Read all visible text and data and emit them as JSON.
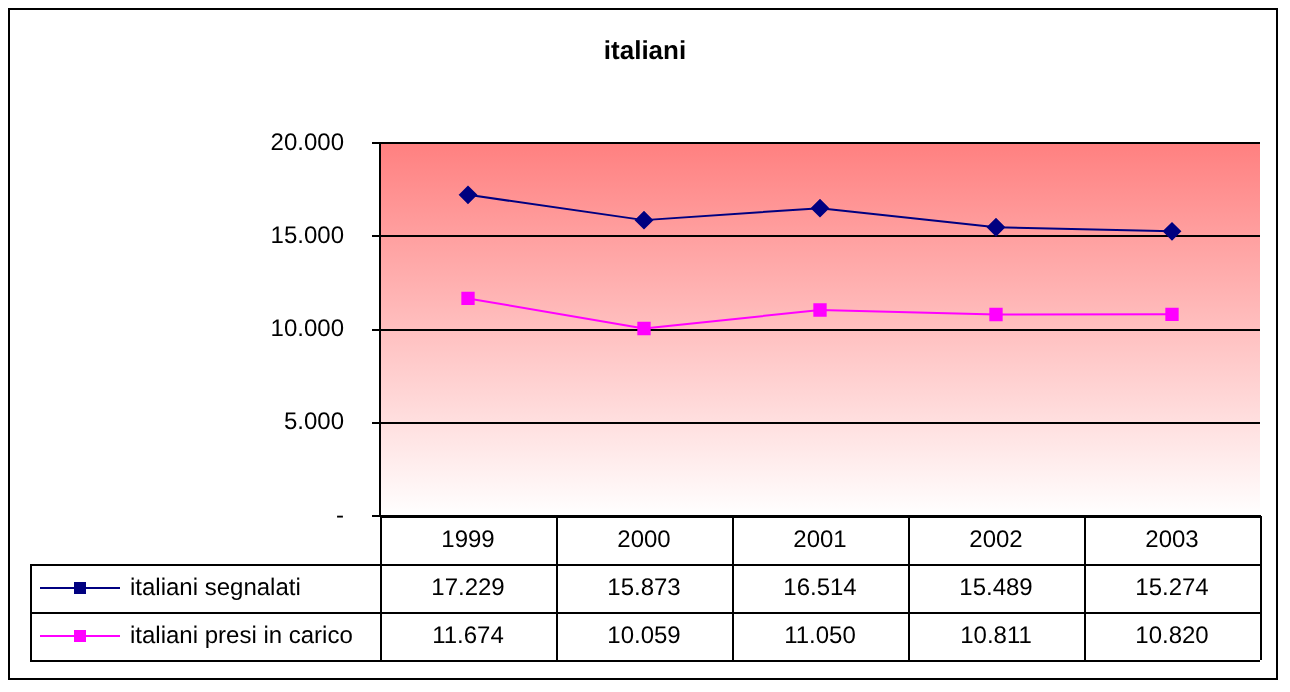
{
  "chart_data": {
    "type": "line",
    "title": "italiani",
    "categories": [
      "1999",
      "2000",
      "2001",
      "2002",
      "2003"
    ],
    "series": [
      {
        "name": "italiani segnalati",
        "color": "#000080",
        "marker": "diamond",
        "values": [
          17229,
          15873,
          16514,
          15489,
          15274
        ],
        "value_labels": [
          "17.229",
          "15.873",
          "16.514",
          "15.489",
          "15.274"
        ]
      },
      {
        "name": "italiani presi in carico",
        "color": "#ff00ff",
        "marker": "square",
        "values": [
          11674,
          10059,
          11050,
          10811,
          10820
        ],
        "value_labels": [
          "11.674",
          "10.059",
          "11.050",
          "10.811",
          "10.820"
        ]
      }
    ],
    "ylim": [
      0,
      20000
    ],
    "yticks": [
      {
        "value": 0,
        "label": "-"
      },
      {
        "value": 5000,
        "label": "5.000"
      },
      {
        "value": 10000,
        "label": "10.000"
      },
      {
        "value": 15000,
        "label": "15.000"
      },
      {
        "value": 20000,
        "label": "20.000"
      }
    ],
    "grid": "y",
    "legend": "bottom",
    "line_style": "solid"
  }
}
